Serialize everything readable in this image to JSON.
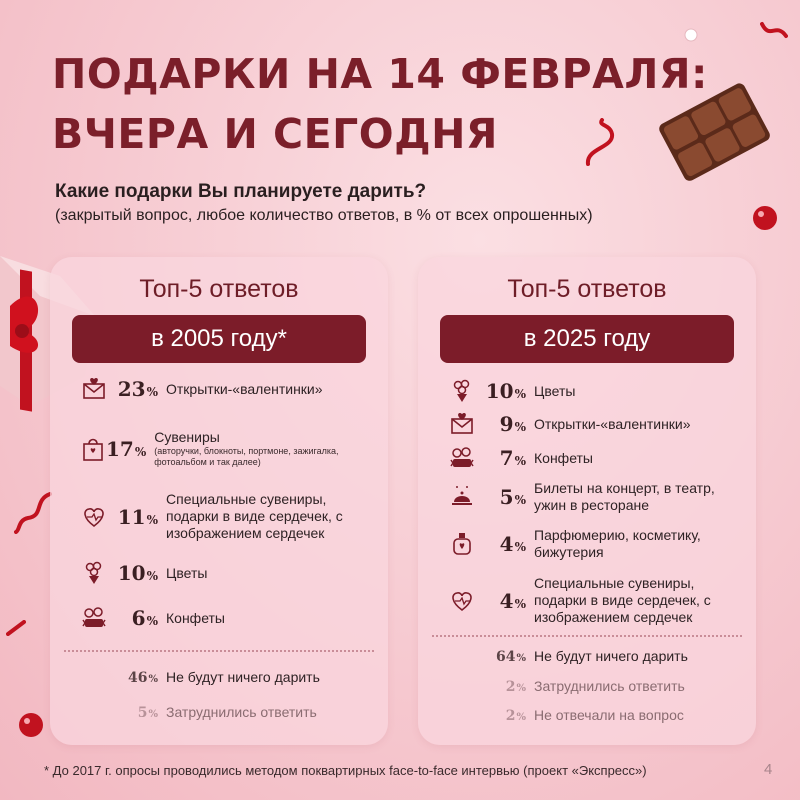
{
  "title": {
    "line1": "ПОДАРКИ НА 14 ФЕВРАЛЯ:",
    "line2": "ВЧЕРА И СЕГОДНЯ"
  },
  "question": {
    "text": "Какие подарки Вы планируете дарить?",
    "note": "(закрытый вопрос, любое количество ответов, в % от всех опрошенных)"
  },
  "left": {
    "heading": "Топ-5 ответов",
    "ribbon": "в 2005 году*",
    "items": [
      {
        "value": "23",
        "pct": "%",
        "label": "Открытки-«валентинки»",
        "sub": "",
        "icon": "envelope-heart-icon"
      },
      {
        "value": "17",
        "pct": "%",
        "label": "Сувениры",
        "sub": "(авторучки, блокноты, портмоне, зажигалка, фотоальбом и так далее)",
        "icon": "gift-bag-icon"
      },
      {
        "value": "11",
        "pct": "%",
        "label": "Специальные сувениры, подарки в виде сердечек, с изображением сердечек",
        "sub": "",
        "icon": "heart-icon"
      },
      {
        "value": "10",
        "pct": "%",
        "label": "Цветы",
        "sub": "",
        "icon": "flowers-icon"
      },
      {
        "value": "6",
        "pct": "%",
        "label": "Конфеты",
        "sub": "",
        "icon": "candy-icon"
      }
    ],
    "extra": [
      {
        "value": "46",
        "pct": "%",
        "label": "Не будут ничего дарить"
      },
      {
        "value": "5",
        "pct": "%",
        "label": "Затруднились ответить"
      }
    ]
  },
  "right": {
    "heading": "Топ-5 ответов",
    "ribbon": "в 2025 году",
    "items": [
      {
        "value": "10",
        "pct": "%",
        "label": "Цветы",
        "icon": "flowers-icon"
      },
      {
        "value": "9",
        "pct": "%",
        "label": "Открытки-«валентинки»",
        "icon": "envelope-heart-icon"
      },
      {
        "value": "7",
        "pct": "%",
        "label": "Конфеты",
        "icon": "candy-icon"
      },
      {
        "value": "5",
        "pct": "%",
        "label": "Билеты на концерт, в театр, ужин в ресторане",
        "icon": "dinner-icon"
      },
      {
        "value": "4",
        "pct": "%",
        "label": "Парфюмерию, косметику, бижутерия",
        "icon": "perfume-icon"
      },
      {
        "value": "4",
        "pct": "%",
        "label": "Специальные сувениры, подарки в виде сердечек, с изображением сердечек",
        "icon": "heart-icon"
      }
    ],
    "extra": [
      {
        "value": "64",
        "pct": "%",
        "label": "Не будут ничего дарить"
      },
      {
        "value": "2",
        "pct": "%",
        "label": "Затруднились ответить"
      },
      {
        "value": "2",
        "pct": "%",
        "label": "Не отвечали на вопрос"
      }
    ]
  },
  "footnote": "* До 2017 г. опросы проводились методом поквартирных face-to-face интервью (проект «Экспресс»)",
  "page_number": "4",
  "colors": {
    "accent": "#7c1c29",
    "title": "#7b1f2a",
    "background": "#f6c9d0"
  }
}
